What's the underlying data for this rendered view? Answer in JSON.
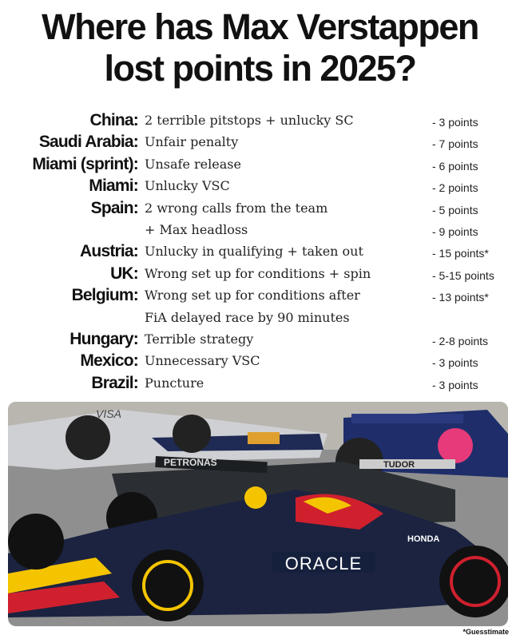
{
  "title": {
    "line1": "Where has Max Verstappen",
    "line2": "lost points in 2025?"
  },
  "rows": [
    {
      "place": "China:",
      "desc": "2 terrible pitstops + unlucky SC",
      "points": "- 3 points"
    },
    {
      "place": "Saudi Arabia:",
      "desc": "Unfair penalty",
      "points": "- 7 points"
    },
    {
      "place": "Miami (sprint):",
      "desc": "Unsafe release",
      "points": "- 6 points"
    },
    {
      "place": "Miami:",
      "desc": "Unlucky VSC",
      "points": "- 2 points"
    },
    {
      "place": "Spain:",
      "desc": "2 wrong calls from the team",
      "points": "- 5 points"
    },
    {
      "place": "",
      "desc": " + Max headloss",
      "points": "- 9 points"
    },
    {
      "place": "Austria:",
      "desc": "Unlucky in qualifying + taken out",
      "points": "- 15 points*"
    },
    {
      "place": "UK:",
      "desc": "Wrong set up for conditions + spin",
      "points": "- 5-15 points"
    },
    {
      "place": "Belgium:",
      "desc": "Wrong set up for conditions after",
      "points": "- 13 points*"
    },
    {
      "place": "",
      "desc": "FiA delayed race by 90 minutes",
      "points": ""
    },
    {
      "place": "Hungary:",
      "desc": "Terrible strategy",
      "points": "- 2-8 points"
    },
    {
      "place": "Mexico:",
      "desc": "Unnecessary VSC",
      "points": "- 3 points"
    },
    {
      "place": "Brazil:",
      "desc": "Puncture",
      "points": "- 3 points"
    }
  ],
  "photo": {
    "logos": {
      "oracle": "ORACLE",
      "honda": "HONDA",
      "petronas": "PETRONAS",
      "tudor": "TUDOR",
      "visa": "VISA"
    }
  },
  "footnote": "*Guesstimate",
  "colors": {
    "car_navy": "#1b2340",
    "redbull_red": "#d0202e",
    "yellow": "#f4c400",
    "track": "#8f8f8f"
  }
}
